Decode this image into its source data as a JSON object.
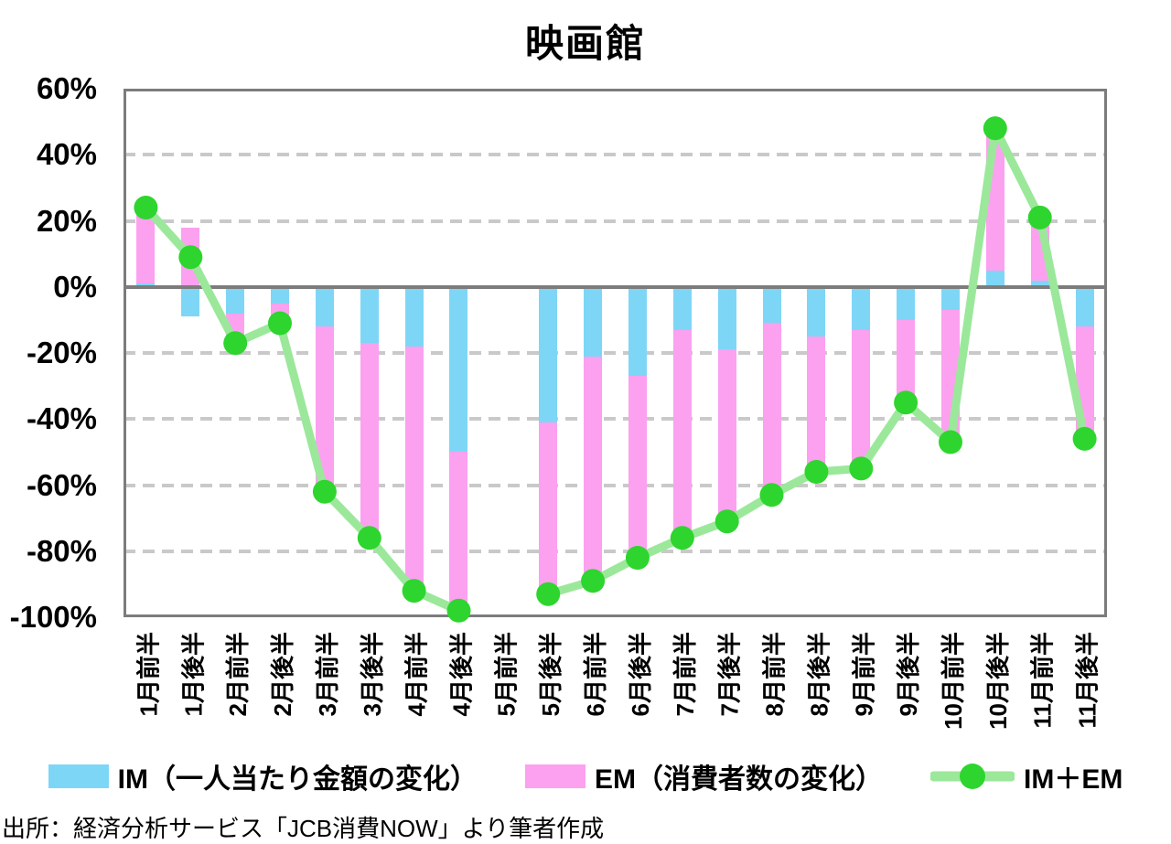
{
  "source": "出所：経済分析サービス「JCB消費NOW」より筆者作成",
  "legend": [
    {
      "label": "IM（一人当たり金額の変化）",
      "type": "box",
      "color": "#7ed6f7"
    },
    {
      "label": "EM（消費者数の変化）",
      "type": "box",
      "color": "#fba1ef"
    },
    {
      "label": "IM＋EM",
      "type": "line-marker",
      "line_color": "#9be89b",
      "marker_color": "#2ed52e"
    }
  ],
  "colors": {
    "im_bar": "#7ed6f7",
    "em_bar": "#fba1ef",
    "line": "#9be89b",
    "marker": "#2ed52e",
    "grid": "#c9c9c9",
    "axis": "#7c7c7c",
    "text": "#000000",
    "background": "#ffffff"
  },
  "y_axis": {
    "ticks": [
      {
        "label": "60%",
        "value": 60
      },
      {
        "label": "40%",
        "value": 40
      },
      {
        "label": "20%",
        "value": 20
      },
      {
        "label": "0%",
        "value": 0
      },
      {
        "label": "-20%",
        "value": -20
      },
      {
        "label": "-40%",
        "value": -40
      },
      {
        "label": "-60%",
        "value": -60
      },
      {
        "label": "-80%",
        "value": -80
      },
      {
        "label": "-100%",
        "value": -100
      }
    ],
    "dashed_gridlines": [
      40,
      20,
      -20,
      -40,
      -60,
      -80
    ]
  },
  "chart_data": {
    "type": "bar",
    "subtype": "stacked-bars-with-line-overlay",
    "title": "映画館",
    "unit": "%",
    "ylim": [
      -100,
      60
    ],
    "ytick_step": 20,
    "grid": "horizontal dashed",
    "legend_position": "bottom",
    "missing_category": "5月前半",
    "categories": [
      "1月前半",
      "1月後半",
      "2月前半",
      "2月後半",
      "3月前半",
      "3月後半",
      "4月前半",
      "4月後半",
      "5月前半",
      "5月後半",
      "6月前半",
      "6月後半",
      "7月前半",
      "7月後半",
      "8月前半",
      "8月後半",
      "9月前半",
      "9月後半",
      "10月前半",
      "10月後半",
      "11月前半",
      "11月後半"
    ],
    "series": [
      {
        "name": "IM（一人当たり金額の変化）",
        "type": "bar",
        "color": "#7ed6f7",
        "values": [
          1,
          -9,
          -8,
          -5,
          -12,
          -17,
          -18,
          -50,
          null,
          -41,
          -21,
          -27,
          -13,
          -19,
          -11,
          -15,
          -13,
          -10,
          -7,
          5,
          2,
          -12
        ]
      },
      {
        "name": "EM（消費者数の変化）",
        "type": "bar",
        "color": "#fba1ef",
        "values": [
          23,
          18,
          -9,
          -6,
          -50,
          -59,
          -74,
          -48,
          null,
          -52,
          -68,
          -55,
          -63,
          -52,
          -52,
          -41,
          -42,
          -25,
          -40,
          43,
          19,
          -34
        ]
      },
      {
        "name": "IM＋EM",
        "type": "line",
        "color": "#9be89b",
        "marker_color": "#2ed52e",
        "values": [
          24,
          9,
          -17,
          -11,
          -62,
          -76,
          -92,
          -98,
          null,
          -93,
          -89,
          -82,
          -76,
          -71,
          -63,
          -56,
          -55,
          -35,
          -47,
          48,
          21,
          -46
        ]
      }
    ]
  }
}
